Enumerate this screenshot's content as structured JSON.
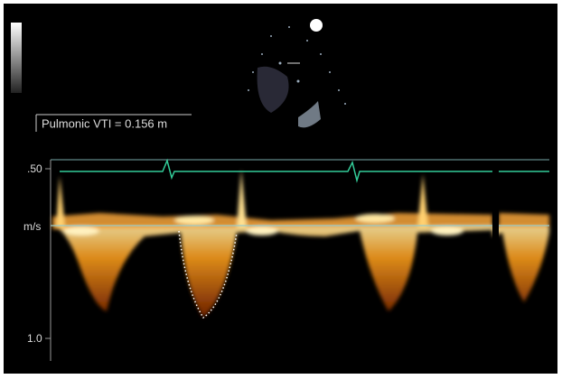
{
  "measurement": "Pulmonic VTI = 0.156 m",
  "scale_labels": [
    ".50",
    "m/s",
    "1.0"
  ]
}
